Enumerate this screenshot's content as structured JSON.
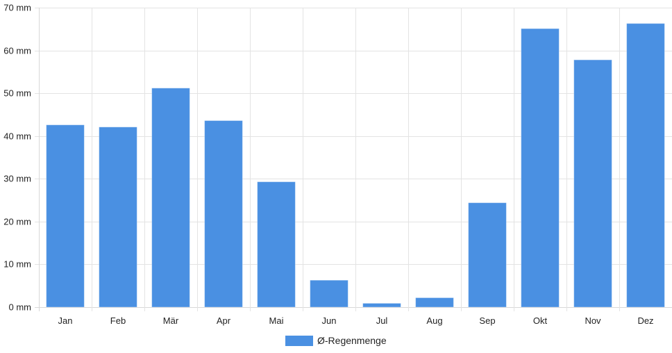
{
  "chart_data": {
    "type": "bar",
    "categories": [
      "Jan",
      "Feb",
      "Mär",
      "Apr",
      "Mai",
      "Jun",
      "Jul",
      "Aug",
      "Sep",
      "Okt",
      "Nov",
      "Dez"
    ],
    "series": [
      {
        "name": "Ø-Regenmenge",
        "color": "#4a90e2",
        "values": [
          42.6,
          42.1,
          51.2,
          43.6,
          29.3,
          6.3,
          0.9,
          2.2,
          24.4,
          65.1,
          57.8,
          66.3
        ]
      }
    ],
    "yticks": [
      "0 mm",
      "10 mm",
      "20 mm",
      "30 mm",
      "40 mm",
      "50 mm",
      "60 mm",
      "70 mm"
    ],
    "ylim": [
      0,
      70
    ],
    "grid": true,
    "legend": "bottom-center"
  }
}
